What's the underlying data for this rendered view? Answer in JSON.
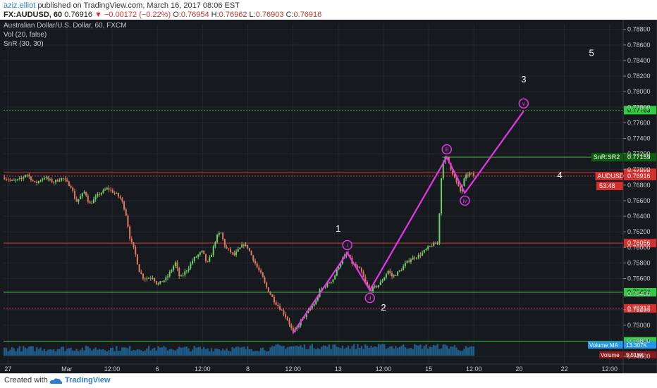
{
  "header": {
    "author": "aziz.elliot",
    "published_text": "published on TradingView.com, March 16, 2017 08:06 EST",
    "symbol": "FX:AUDUSD, 60",
    "last": "0.76916",
    "change": "−0.00172 (−0.22%)",
    "open_label": "O:",
    "open": "0.76954",
    "high_label": "H:",
    "high": "0.76962",
    "low_label": "L:",
    "low": "0.76903",
    "close_label": "C:",
    "close": "0.76916"
  },
  "legend": {
    "line1": "Australian Dollar/U.S. Dollar, 60, FXCM",
    "line2": "Vol (20, false)",
    "line3": "SnR (30, 30)"
  },
  "footer": {
    "created_with": "Created with",
    "brand": "TradingView"
  },
  "colors": {
    "background": "#161a1e",
    "up_candle": "#6fcf6a",
    "down_candle": "#e07a5f",
    "wave": "#e535e8",
    "support": "#3fb93f",
    "resistance": "#d23a3a",
    "price_tag": "#d32f2f",
    "volume": "#1f5d8a"
  },
  "chart_data": {
    "type": "candlestick",
    "title": "Australian Dollar/U.S. Dollar, 60, FXCM",
    "ylim": [
      0.7461,
      0.7887
    ],
    "yticks": [
      "0.78800",
      "0.78600",
      "0.78400",
      "0.78200",
      "0.78000",
      "0.77800",
      "0.77600",
      "0.77400",
      "0.77200",
      "0.77000",
      "0.76800",
      "0.76600",
      "0.76400",
      "0.76200",
      "0.76000",
      "0.75800",
      "0.75600",
      "0.75400",
      "0.75200",
      "0.75000",
      "0.74800",
      "0.74600"
    ],
    "xticks": [
      {
        "label": "27",
        "t": 1
      },
      {
        "label": "Mar",
        "t": 14
      },
      {
        "label": "12:00",
        "t": 24
      },
      {
        "label": "6",
        "t": 34
      },
      {
        "label": "12:00",
        "t": 44
      },
      {
        "label": "8",
        "t": 54
      },
      {
        "label": "12:00",
        "t": 64
      },
      {
        "label": "13",
        "t": 74
      },
      {
        "label": "12:00",
        "t": 84
      },
      {
        "label": "15",
        "t": 94
      },
      {
        "label": "12:00",
        "t": 104
      },
      {
        "label": "20",
        "t": 114
      },
      {
        "label": "22",
        "t": 124
      },
      {
        "label": "12:00",
        "t": 134
      }
    ],
    "price_path": [
      [
        0,
        0.769
      ],
      [
        2,
        0.7685
      ],
      [
        4,
        0.7688
      ],
      [
        5,
        0.7695
      ],
      [
        7,
        0.7682
      ],
      [
        9,
        0.769
      ],
      [
        11,
        0.7684
      ],
      [
        13,
        0.7689
      ],
      [
        15,
        0.7678
      ],
      [
        16,
        0.7658
      ],
      [
        18,
        0.7672
      ],
      [
        19,
        0.7655
      ],
      [
        21,
        0.7668
      ],
      [
        23,
        0.7676
      ],
      [
        25,
        0.7668
      ],
      [
        26,
        0.7662
      ],
      [
        27,
        0.7645
      ],
      [
        28,
        0.761
      ],
      [
        29,
        0.7595
      ],
      [
        30,
        0.757
      ],
      [
        31,
        0.756
      ],
      [
        33,
        0.7562
      ],
      [
        34,
        0.7552
      ],
      [
        36,
        0.756
      ],
      [
        37,
        0.757
      ],
      [
        38,
        0.758
      ],
      [
        39,
        0.756
      ],
      [
        41,
        0.7575
      ],
      [
        42,
        0.7585
      ],
      [
        44,
        0.7595
      ],
      [
        45,
        0.7578
      ],
      [
        46,
        0.7592
      ],
      [
        47,
        0.7612
      ],
      [
        48,
        0.762
      ],
      [
        49,
        0.76
      ],
      [
        51,
        0.759
      ],
      [
        53,
        0.7604
      ],
      [
        54,
        0.76
      ],
      [
        56,
        0.7575
      ],
      [
        57,
        0.7565
      ],
      [
        58,
        0.755
      ],
      [
        59,
        0.754
      ],
      [
        60,
        0.753
      ],
      [
        62,
        0.7515
      ],
      [
        63,
        0.7505
      ],
      [
        64,
        0.749
      ],
      [
        65,
        0.7498
      ],
      [
        66,
        0.7508
      ],
      [
        67,
        0.7515
      ],
      [
        69,
        0.753
      ],
      [
        70,
        0.7545
      ],
      [
        71,
        0.755
      ],
      [
        73,
        0.756
      ],
      [
        74,
        0.7575
      ],
      [
        75,
        0.7585
      ],
      [
        76,
        0.7593
      ],
      [
        77,
        0.758
      ],
      [
        79,
        0.757
      ],
      [
        80,
        0.7555
      ],
      [
        81,
        0.7545
      ],
      [
        83,
        0.7552
      ],
      [
        84,
        0.756
      ],
      [
        85,
        0.757
      ],
      [
        86,
        0.7562
      ],
      [
        88,
        0.7572
      ],
      [
        89,
        0.758
      ],
      [
        90,
        0.7585
      ],
      [
        92,
        0.759
      ],
      [
        94,
        0.76
      ],
      [
        95,
        0.7604
      ],
      [
        96,
        0.7605
      ],
      [
        97,
        0.771
      ],
      [
        98,
        0.7716
      ],
      [
        99,
        0.77
      ],
      [
        100,
        0.7685
      ],
      [
        101,
        0.7672
      ],
      [
        102,
        0.769
      ],
      [
        103,
        0.7695
      ],
      [
        104,
        0.7692
      ]
    ],
    "wave_path": [
      {
        "t": 64,
        "v": 0.749
      },
      {
        "t": 76,
        "v": 0.7593
      },
      {
        "t": 81,
        "v": 0.7545
      },
      {
        "t": 98,
        "v": 0.7716
      },
      {
        "t": 102,
        "v": 0.767
      },
      {
        "t": 115,
        "v": 0.7775
      }
    ],
    "wave_labels": [
      {
        "text": "i",
        "t": 76,
        "v": 0.7593,
        "pos": "above"
      },
      {
        "text": "ii",
        "t": 81,
        "v": 0.7545,
        "pos": "below"
      },
      {
        "text": "iii",
        "t": 98,
        "v": 0.7716,
        "pos": "above"
      },
      {
        "text": "iv",
        "t": 102,
        "v": 0.767,
        "pos": "below"
      },
      {
        "text": "v",
        "t": 115,
        "v": 0.7775,
        "pos": "above"
      }
    ],
    "wave_counts": [
      {
        "text": "1",
        "t": 74,
        "v": 0.762
      },
      {
        "text": "2",
        "t": 84,
        "v": 0.7519
      },
      {
        "text": "3",
        "t": 115,
        "v": 0.7812
      },
      {
        "text": "4",
        "t": 123,
        "v": 0.7689
      },
      {
        "text": "5",
        "t": 130,
        "v": 0.7846
      }
    ],
    "levels": [
      {
        "value": 0.77763,
        "label": "0.77763",
        "style": "dotted",
        "color": "#3fb93f",
        "tag": "#2ecc40",
        "text": "#000000",
        "extent": "full"
      },
      {
        "value": 0.77159,
        "label": "0.77159",
        "style": "solid",
        "color": "#3fb93f",
        "tag": "#0d5c0d",
        "text": "#ffffff",
        "extent": "right",
        "from_t": 97,
        "caption": "SnR:SR2"
      },
      {
        "value": 0.76958,
        "label": "0.76958",
        "style": "solid",
        "color": "#d23a3a",
        "tag": "#d32f2f",
        "text": "#ffffff",
        "extent": "full"
      },
      {
        "value": 0.76916,
        "label": "0.76916",
        "style": "dotted",
        "color": "#d23a3a",
        "tag": "#d32f2f",
        "text": "#ffffff",
        "extent": "full",
        "caption": "AUDUSD"
      },
      {
        "value": 0.76056,
        "label": "0.76056",
        "style": "solid",
        "color": "#d23a3a",
        "tag": "#d32f2f",
        "text": "#ffffff",
        "extent": "full"
      },
      {
        "value": 0.75424,
        "label": "0.75424",
        "style": "solid",
        "color": "#3fb93f",
        "tag": "#2ecc40",
        "text": "#000000",
        "extent": "full"
      },
      {
        "value": 0.75217,
        "label": "0.75217",
        "style": "dotted",
        "color": "#d23a3a",
        "tag": "#d32f2f",
        "text": "#ffffff",
        "extent": "full"
      },
      {
        "value": 0.74794,
        "label": "0.74794",
        "style": "solid",
        "color": "#3fb93f",
        "tag": "#2ecc40",
        "text": "#000000",
        "extent": "full"
      }
    ],
    "countdown": "53:48",
    "volume_ma_label": "Volume MA",
    "volume_ma_value": "13.307K",
    "volume_label": "Volume",
    "volume_value": "5.519K"
  }
}
